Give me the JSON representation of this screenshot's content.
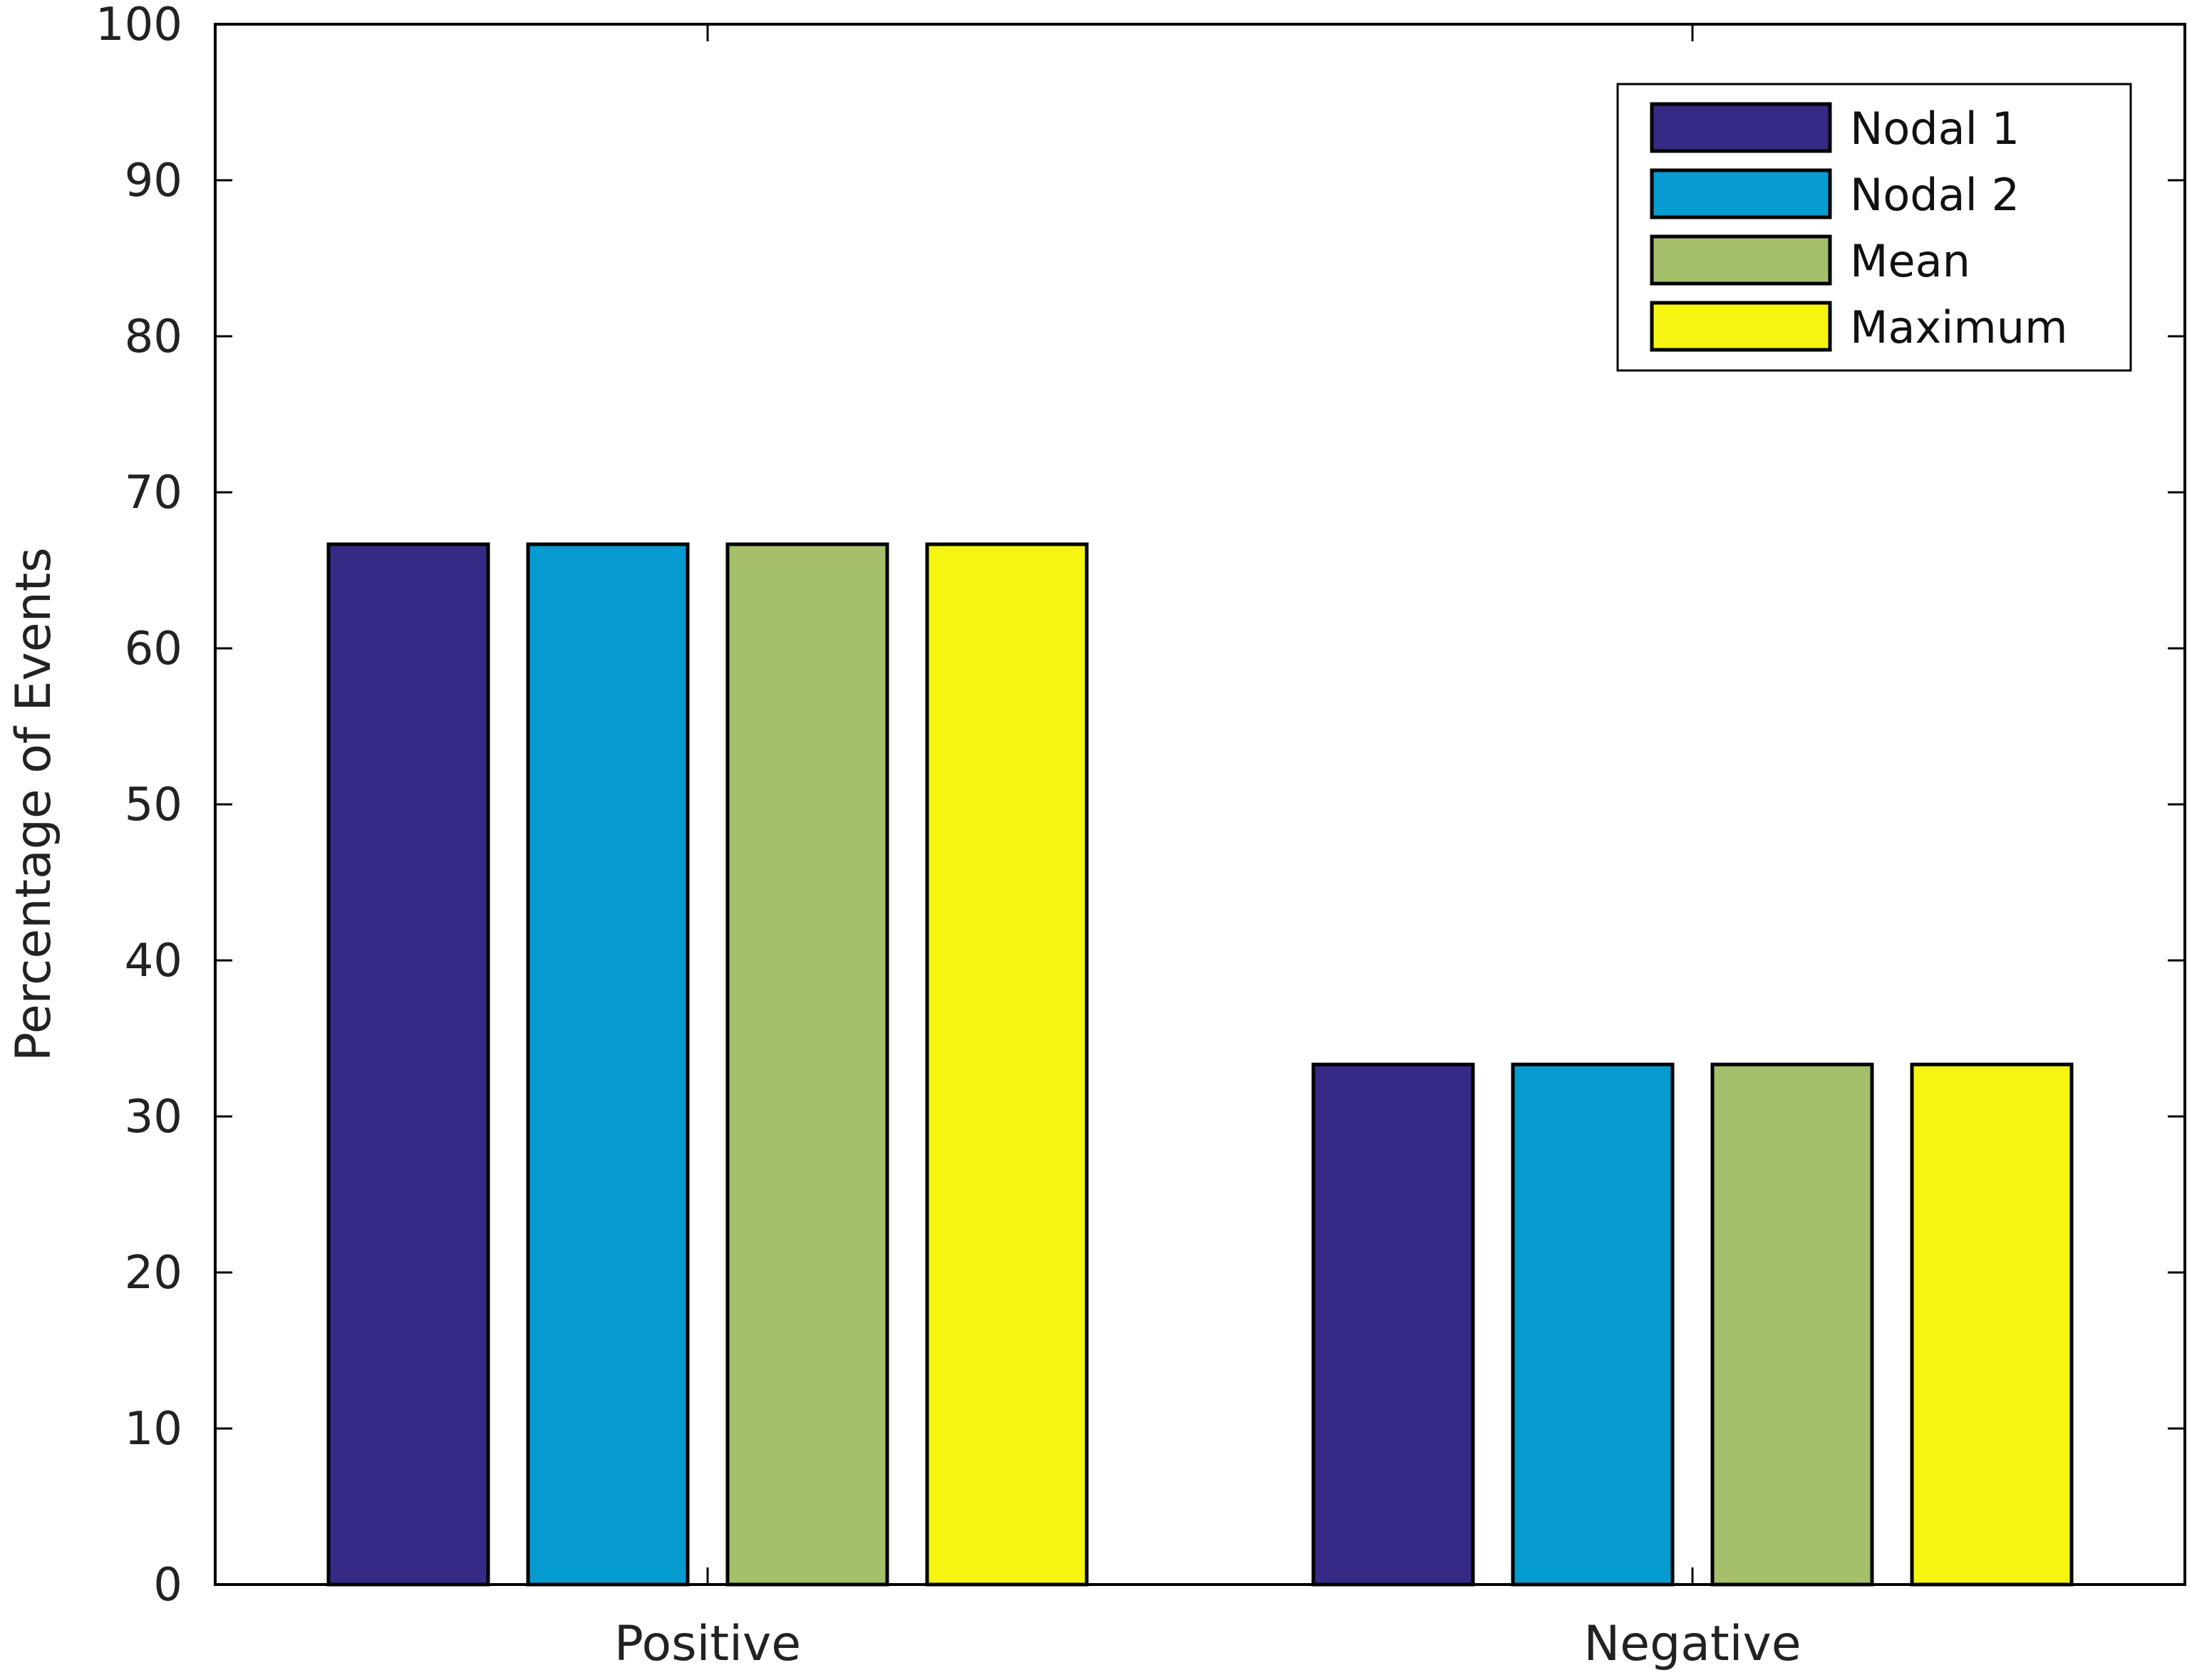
{
  "chart_data": {
    "type": "bar",
    "title": "",
    "xlabel": "",
    "ylabel": "Percentage of Events",
    "ylim": [
      0,
      100
    ],
    "yticks": [
      0,
      10,
      20,
      30,
      40,
      50,
      60,
      70,
      80,
      90,
      100
    ],
    "categories": [
      "Positive",
      "Negative"
    ],
    "series": [
      {
        "name": "Nodal 1",
        "color": "#352a85",
        "values": [
          66.67,
          33.33
        ]
      },
      {
        "name": "Nodal 2",
        "color": "#069bd1",
        "values": [
          66.67,
          33.33
        ]
      },
      {
        "name": "Mean",
        "color": "#a5bf6a",
        "values": [
          66.67,
          33.33
        ]
      },
      {
        "name": "Maximum",
        "color": "#f5f511",
        "values": [
          66.67,
          33.33
        ]
      }
    ],
    "grid": false,
    "legend_position": "top-right"
  }
}
